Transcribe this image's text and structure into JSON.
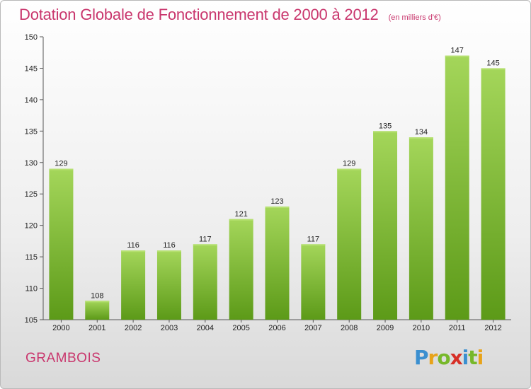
{
  "header": {
    "title": "Dotation Globale de Fonctionnement de 2000 à 2012",
    "subtitle": "(en milliers d'€)"
  },
  "footer": {
    "commune": "GRAMBOIS",
    "logo": "Proxiti"
  },
  "colors": {
    "title": "#c9366d",
    "bar_top": "#a4d65a",
    "bar_bottom": "#5c9a18"
  },
  "chart_data": {
    "type": "bar",
    "title": "Dotation Globale de Fonctionnement de 2000 à 2012",
    "subtitle": "(en milliers d'€)",
    "categories": [
      "2000",
      "2001",
      "2002",
      "2003",
      "2004",
      "2005",
      "2006",
      "2007",
      "2008",
      "2009",
      "2010",
      "2011",
      "2012"
    ],
    "values": [
      129,
      108,
      116,
      116,
      117,
      121,
      123,
      117,
      129,
      135,
      134,
      147,
      145
    ],
    "ylim": [
      105,
      150
    ],
    "yticks": [
      105,
      110,
      115,
      120,
      125,
      130,
      135,
      140,
      145,
      150
    ],
    "xlabel": "",
    "ylabel": "",
    "grid": false,
    "data_labels": true
  }
}
